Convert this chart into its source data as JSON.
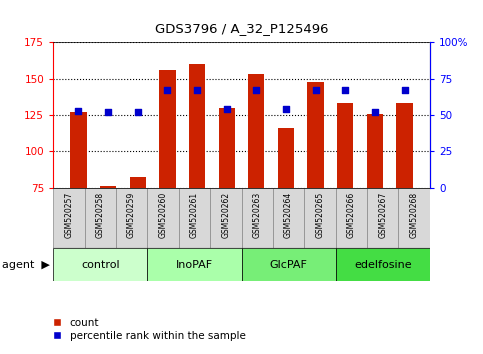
{
  "title": "GDS3796 / A_32_P125496",
  "samples": [
    "GSM520257",
    "GSM520258",
    "GSM520259",
    "GSM520260",
    "GSM520261",
    "GSM520262",
    "GSM520263",
    "GSM520264",
    "GSM520265",
    "GSM520266",
    "GSM520267",
    "GSM520268"
  ],
  "count_values": [
    127,
    76,
    82,
    156,
    160,
    130,
    153,
    116,
    148,
    133,
    126,
    133
  ],
  "percentile_values": [
    53,
    52,
    52,
    67,
    67,
    54,
    67,
    54,
    67,
    67,
    52,
    67
  ],
  "groups": [
    {
      "label": "control",
      "start": 0,
      "end": 3,
      "color": "#ccffcc"
    },
    {
      "label": "InoPAF",
      "start": 3,
      "end": 6,
      "color": "#99ee99"
    },
    {
      "label": "GlcPAF",
      "start": 6,
      "end": 9,
      "color": "#66cc66"
    },
    {
      "label": "edelfosine",
      "start": 9,
      "end": 12,
      "color": "#33bb33"
    }
  ],
  "bar_color": "#cc2200",
  "dot_color": "#0000cc",
  "ylim_left": [
    75,
    175
  ],
  "ylim_right": [
    0,
    100
  ],
  "yticks_left": [
    75,
    100,
    125,
    150,
    175
  ],
  "yticks_right": [
    0,
    25,
    50,
    75,
    100
  ],
  "yticklabels_right": [
    "0",
    "25",
    "50",
    "75",
    "100%"
  ],
  "bar_baseline": 75,
  "legend_count_label": "count",
  "legend_pct_label": "percentile rank within the sample",
  "agent_label": "agent",
  "fig_width": 4.83,
  "fig_height": 3.54
}
